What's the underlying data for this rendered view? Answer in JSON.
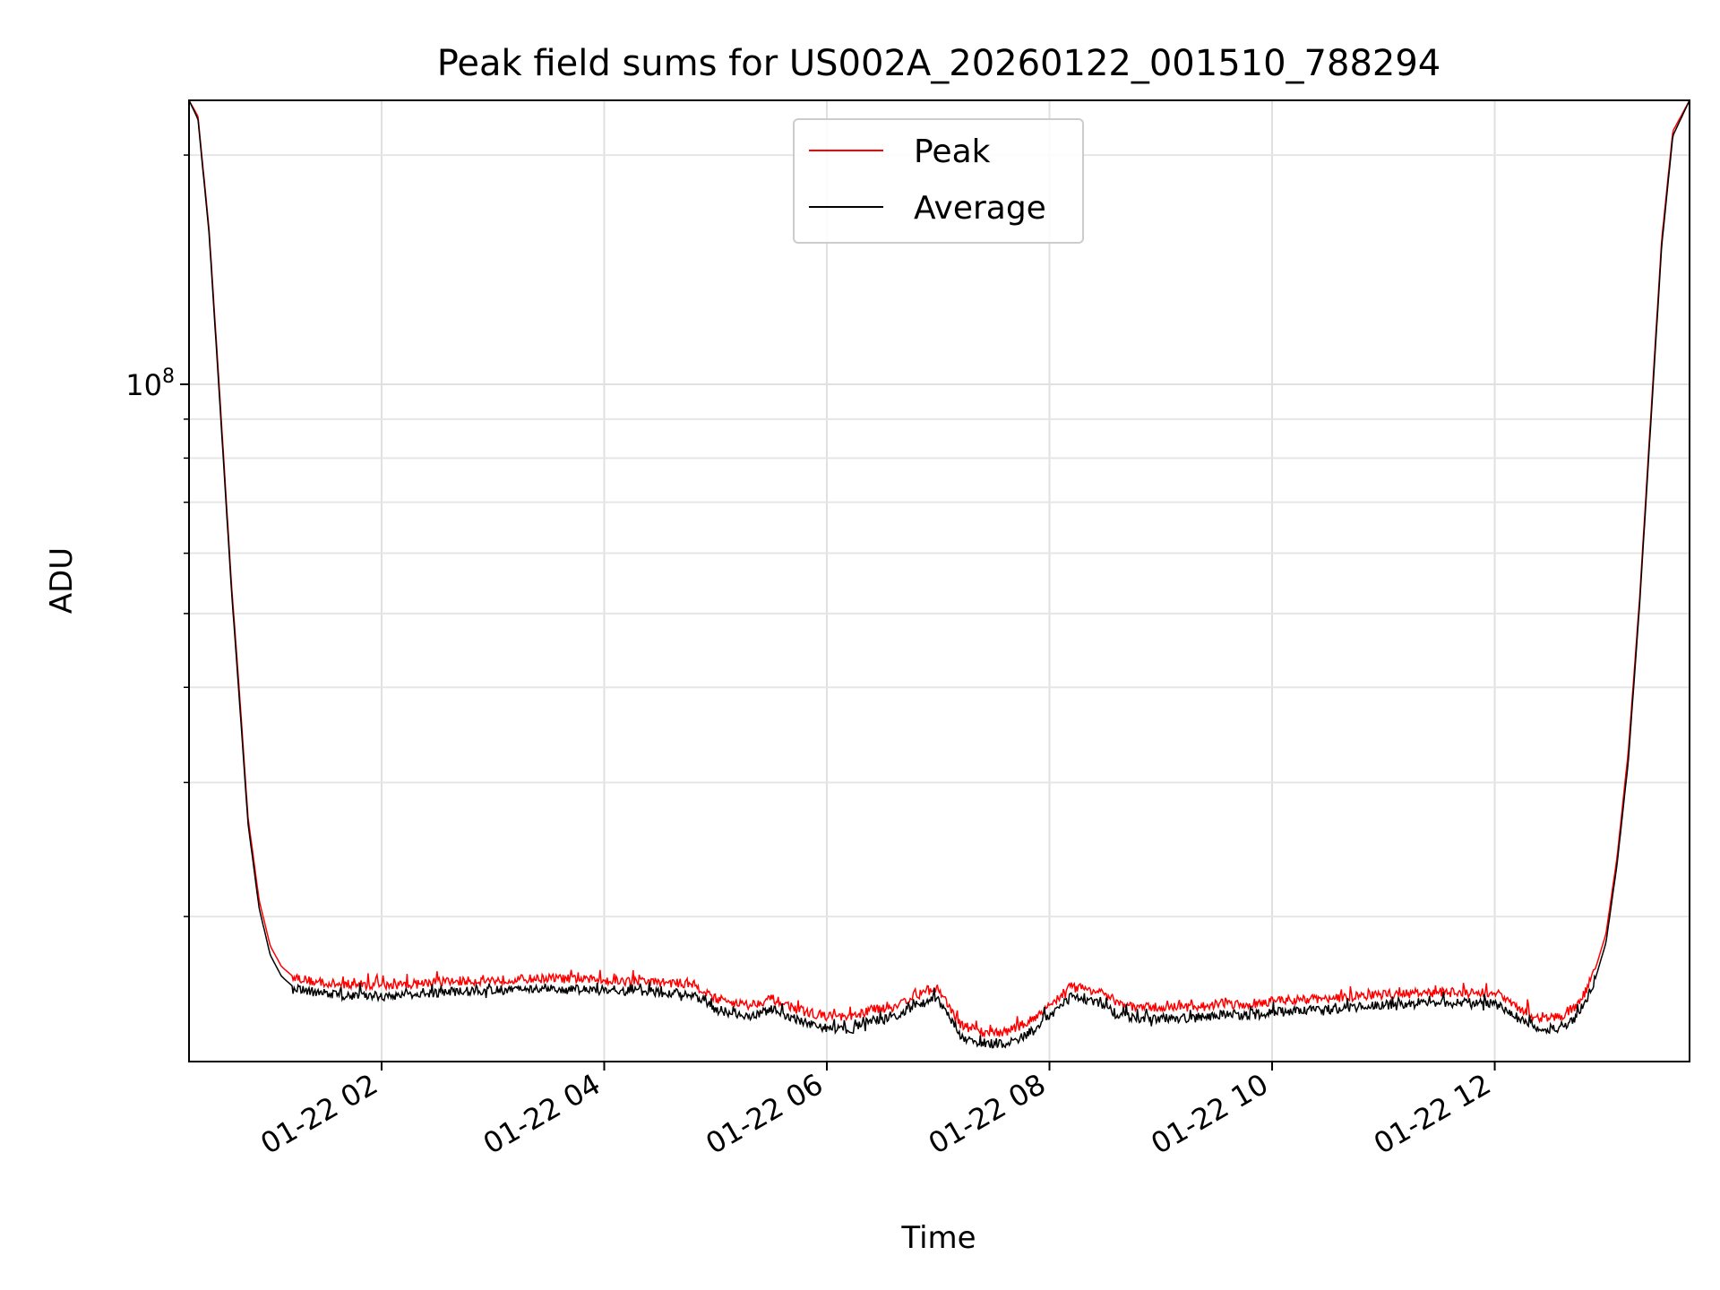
{
  "chart_data": {
    "type": "line",
    "title": "Peak field sums for US002A_20260122_001510_788294",
    "xlabel": "Time",
    "ylabel": "ADU",
    "yscale": "log",
    "ylim": [
      12900000,
      236000000
    ],
    "xlim_hours": [
      0.27,
      13.75
    ],
    "x_ticks": [
      {
        "hour": 2,
        "label": "01-22 02"
      },
      {
        "hour": 4,
        "label": "01-22 04"
      },
      {
        "hour": 6,
        "label": "01-22 06"
      },
      {
        "hour": 8,
        "label": "01-22 08"
      },
      {
        "hour": 10,
        "label": "01-22 10"
      },
      {
        "hour": 12,
        "label": "01-22 12"
      }
    ],
    "y_major_ticks": [
      {
        "value": 100000000,
        "base": "10",
        "exp": "8"
      }
    ],
    "y_minor_ticks": [
      20000000,
      30000000,
      40000000,
      50000000,
      60000000,
      70000000,
      80000000,
      90000000,
      200000000
    ],
    "grid": true,
    "legend_position": "top-center",
    "series": [
      {
        "name": "Peak",
        "color": "#ff0000",
        "x_hours": [
          0.27,
          0.35,
          0.45,
          0.55,
          0.65,
          0.72,
          0.8,
          0.9,
          1.0,
          1.1,
          1.2,
          1.4,
          1.6,
          1.8,
          2.0,
          2.5,
          3.0,
          3.5,
          4.0,
          4.5,
          4.8,
          5.0,
          5.3,
          5.5,
          5.6,
          5.8,
          6.0,
          6.2,
          6.4,
          6.6,
          6.8,
          7.0,
          7.2,
          7.4,
          7.6,
          7.8,
          8.0,
          8.2,
          8.4,
          8.6,
          8.8,
          9.0,
          9.3,
          9.6,
          9.8,
          10.0,
          10.5,
          11.0,
          11.5,
          12.0,
          12.2,
          12.4,
          12.6,
          12.7,
          12.8,
          12.9,
          13.0,
          13.1,
          13.2,
          13.3,
          13.4,
          13.5,
          13.6,
          13.75
        ],
        "values": [
          236000000,
          225000000,
          160000000,
          95000000,
          55000000,
          40000000,
          27000000,
          21000000,
          18300000,
          17200000,
          16700000,
          16400000,
          16300000,
          16300000,
          16200000,
          16400000,
          16500000,
          16600000,
          16500000,
          16400000,
          16300000,
          15600000,
          15300000,
          15600000,
          15400000,
          15000000,
          14800000,
          14700000,
          15100000,
          15200000,
          15800000,
          16100000,
          14400000,
          14100000,
          14100000,
          14500000,
          15300000,
          16200000,
          16000000,
          15400000,
          15200000,
          15200000,
          15200000,
          15400000,
          15300000,
          15500000,
          15600000,
          15800000,
          15900000,
          15900000,
          15200000,
          14700000,
          14800000,
          15100000,
          15800000,
          17000000,
          19000000,
          24000000,
          33000000,
          52000000,
          90000000,
          155000000,
          215000000,
          236000000
        ]
      },
      {
        "name": "Average",
        "color": "#000000",
        "x_hours": [
          0.27,
          0.35,
          0.45,
          0.55,
          0.65,
          0.72,
          0.8,
          0.9,
          1.0,
          1.1,
          1.2,
          1.4,
          1.6,
          1.8,
          2.0,
          2.5,
          3.0,
          3.5,
          4.0,
          4.5,
          4.8,
          5.0,
          5.3,
          5.5,
          5.6,
          5.8,
          6.0,
          6.2,
          6.4,
          6.6,
          6.8,
          7.0,
          7.2,
          7.4,
          7.6,
          7.8,
          8.0,
          8.2,
          8.4,
          8.6,
          8.8,
          9.0,
          9.3,
          9.6,
          9.8,
          10.0,
          10.5,
          11.0,
          11.5,
          12.0,
          12.2,
          12.4,
          12.6,
          12.7,
          12.8,
          12.9,
          13.0,
          13.1,
          13.2,
          13.3,
          13.4,
          13.5,
          13.6,
          13.75
        ],
        "values": [
          236000000,
          223000000,
          158000000,
          93000000,
          54000000,
          39000000,
          26500000,
          20500000,
          17800000,
          16700000,
          16200000,
          15900000,
          15800000,
          15800000,
          15700000,
          15900000,
          16000000,
          16100000,
          16000000,
          15900000,
          15800000,
          15100000,
          14800000,
          15100000,
          14900000,
          14500000,
          14300000,
          14200000,
          14600000,
          14700000,
          15300000,
          15600000,
          13900000,
          13600000,
          13600000,
          14000000,
          14800000,
          15700000,
          15500000,
          14900000,
          14700000,
          14700000,
          14700000,
          14900000,
          14800000,
          15000000,
          15100000,
          15300000,
          15400000,
          15400000,
          14700000,
          14200000,
          14300000,
          14600000,
          15300000,
          16500000,
          18500000,
          23500000,
          32000000,
          51000000,
          88000000,
          152000000,
          212000000,
          236000000
        ]
      }
    ]
  }
}
